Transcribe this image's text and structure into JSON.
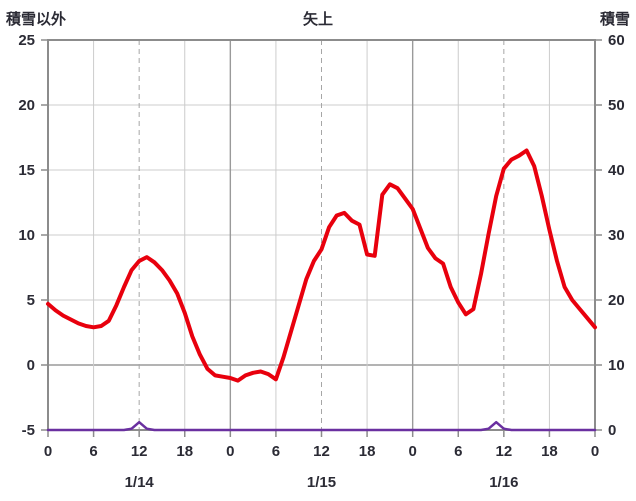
{
  "chart_data": {
    "type": "line",
    "title": "矢上",
    "left_axis": {
      "label": "積雪以外",
      "min": -5,
      "max": 25,
      "ticks": [
        25,
        20,
        15,
        10,
        5,
        0,
        -5
      ]
    },
    "right_axis": {
      "label": "積雪",
      "min": 0,
      "max": 60,
      "ticks": [
        60,
        50,
        40,
        30,
        20,
        10,
        0
      ]
    },
    "x_axis": {
      "total_hours": 72,
      "tick_hours": [
        0,
        6,
        12,
        18,
        24,
        30,
        36,
        42,
        48,
        54,
        60,
        66,
        72
      ],
      "tick_labels": [
        "0",
        "6",
        "12",
        "18",
        "0",
        "6",
        "12",
        "18",
        "0",
        "6",
        "12",
        "18",
        "0"
      ],
      "day_labels": [
        {
          "label": "1/14",
          "hour": 12
        },
        {
          "label": "1/15",
          "hour": 36
        },
        {
          "label": "1/16",
          "hour": 60
        }
      ]
    },
    "series": [
      {
        "name": "non-snow-value-red",
        "axis": "left",
        "color": "#e8000d",
        "width": 4,
        "values": [
          4.7,
          4.2,
          3.8,
          3.5,
          3.2,
          3.0,
          2.9,
          3.0,
          3.4,
          4.6,
          6.0,
          7.3,
          8.0,
          8.3,
          7.9,
          7.3,
          6.5,
          5.5,
          4.0,
          2.2,
          0.8,
          -0.3,
          -0.8,
          -0.9,
          -1.0,
          -1.2,
          -0.8,
          -0.6,
          -0.5,
          -0.7,
          -1.1,
          0.6,
          2.6,
          4.6,
          6.6,
          8.0,
          8.9,
          10.6,
          11.5,
          11.7,
          11.1,
          10.8,
          8.5,
          8.4,
          13.1,
          13.9,
          13.6,
          12.8,
          12.0,
          10.5,
          9.0,
          8.2,
          7.8,
          6.0,
          4.8,
          3.9,
          4.3,
          7.0,
          10.1,
          13.0,
          15.1,
          15.8,
          16.1,
          16.5,
          15.3,
          13.0,
          10.4,
          8.0,
          6.0,
          5.0,
          4.3,
          3.6,
          2.9
        ]
      },
      {
        "name": "snow-depth-purple",
        "axis": "right",
        "color": "#6a30a0",
        "width": 2.5,
        "values": [
          0,
          0,
          0,
          0,
          0,
          0,
          0,
          0,
          0,
          0,
          0,
          0.2,
          1.2,
          0.2,
          0,
          0,
          0,
          0,
          0,
          0,
          0,
          0,
          0,
          0,
          0,
          0,
          0,
          0,
          0,
          0,
          0,
          0,
          0,
          0,
          0,
          0,
          0,
          0,
          0,
          0,
          0,
          0,
          0,
          0,
          0,
          0,
          0,
          0,
          0,
          0,
          0,
          0,
          0,
          0,
          0,
          0,
          0,
          0,
          0.2,
          1.2,
          0.2,
          0,
          0,
          0,
          0,
          0,
          0,
          0,
          0,
          0,
          0,
          0,
          0
        ]
      }
    ],
    "colors": {
      "frame": "#8c8c8c",
      "grid_light": "#cccccc",
      "grid_mid": "#a6a6a6",
      "grid_dark": "#9a9a9a",
      "text": "#2b2b35"
    }
  }
}
